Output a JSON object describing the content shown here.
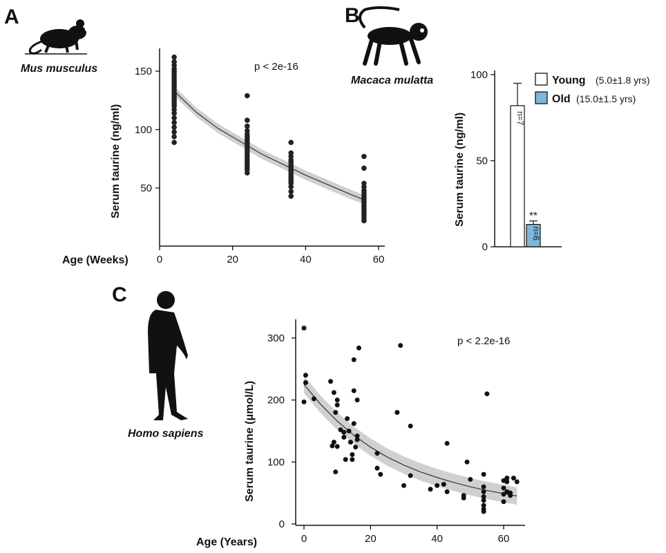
{
  "panels": {
    "A": {
      "letter": "A",
      "species": "Mus musculus",
      "p_value": "p < 2e-16"
    },
    "B": {
      "letter": "B",
      "species": "Macaca mulatta",
      "legend": [
        {
          "label": "Young",
          "detail": "(5.0±1.8 yrs)",
          "color": "#ffffff"
        },
        {
          "label": "Old",
          "detail": "(15.0±1.5 yrs)",
          "color": "#7fb6da"
        }
      ],
      "n_young": "n=7",
      "n_old": "n=6",
      "significance": "**"
    },
    "C": {
      "letter": "C",
      "species": "Homo sapiens",
      "p_value": "p < 2.2e-16"
    }
  },
  "chart_data": [
    {
      "id": "A",
      "type": "scatter",
      "xlabel": "Age (Weeks)",
      "ylabel": "Serum taurine (ng/ml)",
      "xlim": [
        0,
        62
      ],
      "ylim": [
        10,
        170
      ],
      "xticks": [
        0,
        20,
        40,
        60
      ],
      "yticks": [
        50,
        100,
        150
      ],
      "groups": [
        {
          "x": 4,
          "y": [
            162,
            158,
            155,
            152,
            150,
            148,
            146,
            144,
            142,
            140,
            138,
            136,
            134,
            132,
            130,
            128,
            126,
            124,
            122,
            120,
            117,
            114,
            110,
            106,
            102,
            98,
            94,
            89
          ]
        },
        {
          "x": 24,
          "y": [
            129,
            108,
            103,
            99,
            96,
            94,
            92,
            90,
            88,
            86,
            84,
            82,
            80,
            78,
            76,
            74,
            72,
            70,
            68,
            66,
            63
          ]
        },
        {
          "x": 36,
          "y": [
            89,
            80,
            77,
            74,
            72,
            70,
            68,
            66,
            64,
            62,
            60,
            58,
            56,
            54,
            51,
            47,
            43
          ]
        },
        {
          "x": 56,
          "y": [
            77,
            67,
            54,
            51,
            48,
            46,
            44,
            42,
            40,
            38,
            36,
            34,
            32,
            30,
            28,
            26,
            24,
            22
          ]
        }
      ],
      "fit": {
        "x": [
          4,
          10,
          16,
          22,
          28,
          34,
          40,
          46,
          52,
          56
        ],
        "y": [
          133,
          115,
          101,
          90,
          79,
          70,
          61,
          53,
          45,
          40
        ]
      },
      "ci_halfwidth": 4
    },
    {
      "id": "B",
      "type": "bar",
      "ylabel": "Serum taurine (ng/ml)",
      "categories": [
        "Young",
        "Old"
      ],
      "values": [
        82,
        13
      ],
      "errors": [
        13,
        2
      ],
      "ylim": [
        0,
        100
      ],
      "yticks": [
        0,
        50,
        100
      ]
    },
    {
      "id": "C",
      "type": "scatter",
      "xlabel": "Age (Years)",
      "ylabel": "Serum taurine (μmol/L)",
      "xlim": [
        -1,
        66
      ],
      "ylim": [
        0,
        330
      ],
      "xticks": [
        0,
        20,
        40,
        60
      ],
      "yticks": [
        0,
        100,
        200,
        300
      ],
      "points": [
        [
          0,
          316
        ],
        [
          0.5,
          240
        ],
        [
          0.5,
          228
        ],
        [
          0,
          197
        ],
        [
          3,
          202
        ],
        [
          8,
          230
        ],
        [
          9,
          212
        ],
        [
          10,
          200
        ],
        [
          10,
          192
        ],
        [
          9.5,
          180
        ],
        [
          9,
          132
        ],
        [
          8.5,
          126
        ],
        [
          9.5,
          84
        ],
        [
          10,
          125
        ],
        [
          11,
          152
        ],
        [
          12,
          148
        ],
        [
          12,
          140
        ],
        [
          12.5,
          104
        ],
        [
          13,
          170
        ],
        [
          13.5,
          150
        ],
        [
          14,
          132
        ],
        [
          14.5,
          112
        ],
        [
          14.5,
          104
        ],
        [
          15,
          265
        ],
        [
          15,
          215
        ],
        [
          15,
          162
        ],
        [
          15.5,
          124
        ],
        [
          16,
          142
        ],
        [
          16,
          136
        ],
        [
          16,
          200
        ],
        [
          16.5,
          284
        ],
        [
          22,
          114
        ],
        [
          22,
          90
        ],
        [
          23,
          80
        ],
        [
          28,
          180
        ],
        [
          29,
          288
        ],
        [
          30,
          62
        ],
        [
          32,
          158
        ],
        [
          32,
          78
        ],
        [
          38,
          56
        ],
        [
          40,
          62
        ],
        [
          42,
          64
        ],
        [
          43,
          52
        ],
        [
          43,
          130
        ],
        [
          48,
          42
        ],
        [
          48,
          46
        ],
        [
          49,
          100
        ],
        [
          50,
          72
        ],
        [
          54,
          80
        ],
        [
          54,
          60
        ],
        [
          54,
          52
        ],
        [
          54,
          44
        ],
        [
          54,
          38
        ],
        [
          54,
          30
        ],
        [
          54,
          24
        ],
        [
          54,
          20
        ],
        [
          55,
          210
        ],
        [
          60,
          70
        ],
        [
          60,
          58
        ],
        [
          60,
          48
        ],
        [
          60,
          36
        ],
        [
          61,
          74
        ],
        [
          61,
          68
        ],
        [
          62,
          50
        ],
        [
          62,
          46
        ],
        [
          63,
          74
        ],
        [
          64,
          68
        ],
        [
          61,
          52
        ]
      ],
      "fit": {
        "x": [
          0,
          5,
          10,
          15,
          20,
          25,
          30,
          35,
          40,
          45,
          50,
          55,
          60,
          64
        ],
        "y": [
          225,
          193,
          166,
          143,
          124,
          108,
          95,
          84,
          75,
          67,
          60,
          54,
          49,
          45
        ]
      },
      "ci_halfwidth": 14
    }
  ]
}
